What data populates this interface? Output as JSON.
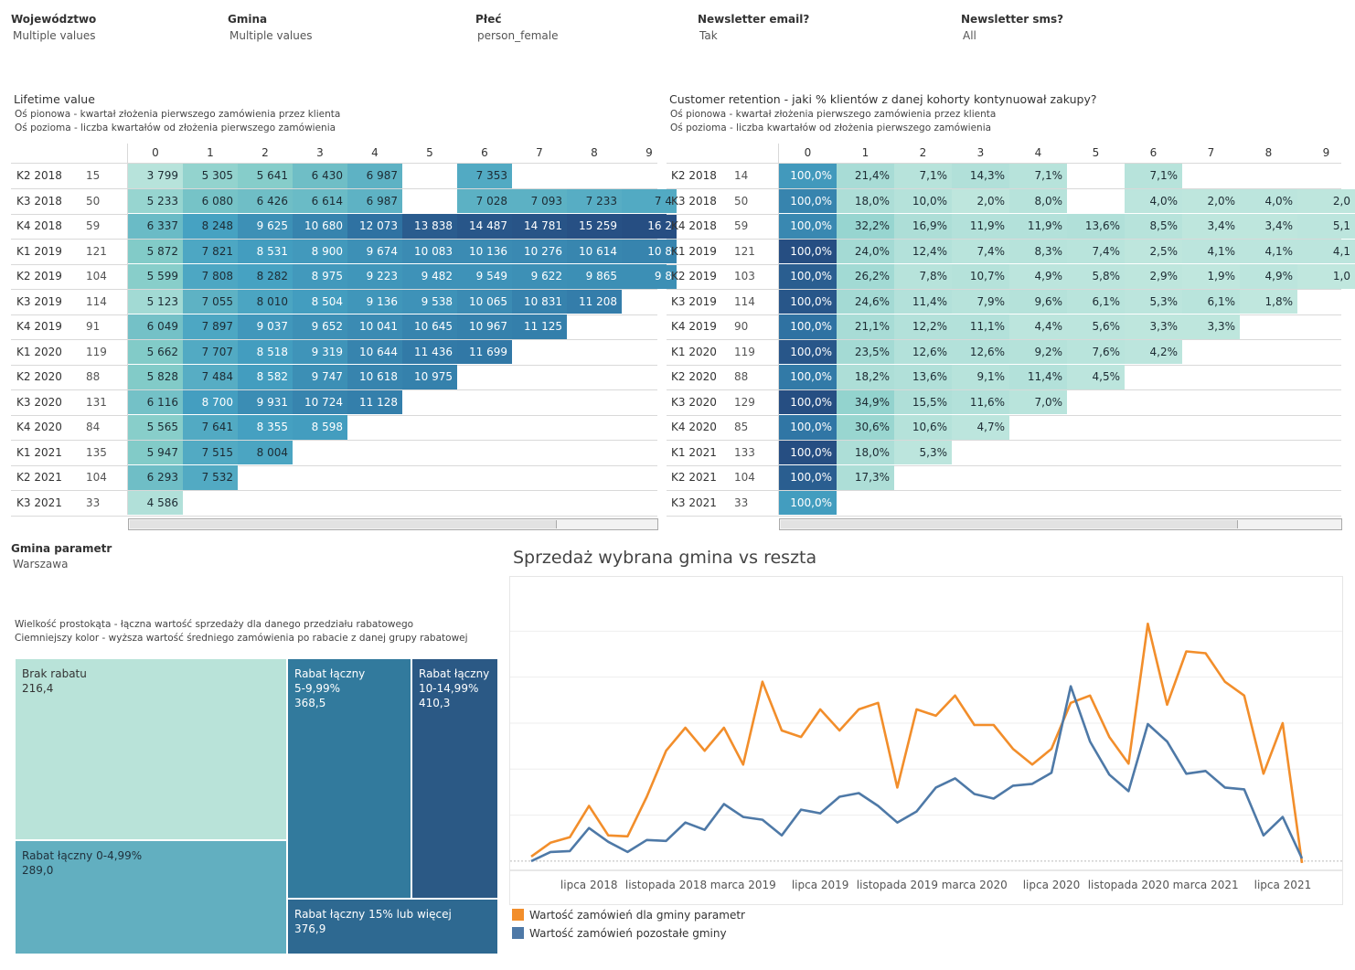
{
  "filters": [
    {
      "label": "Województwo",
      "value": "Multiple values"
    },
    {
      "label": "Gmina",
      "value": "Multiple values"
    },
    {
      "label": "Płeć",
      "value": "person_female"
    },
    {
      "label": "Newsletter email?",
      "value": "Tak"
    },
    {
      "label": "Newsletter sms?",
      "value": "All"
    }
  ],
  "ltv": {
    "title": "Lifetime value",
    "sub1": "Oś pionowa - kwartał złożenia pierwszego zamówienia przez klienta",
    "sub2": "Oś pozioma - liczba kwartałów od złożenia pierwszego zamówienia"
  },
  "ret": {
    "title": "Customer retention - jaki % klientów z danej kohorty kontynuował zakupy?",
    "sub1": "Oś pionowa - kwartał złożenia pierwszego zamówienia przez klienta",
    "sub2": "Oś pozioma - liczba kwartałów od złożenia pierwszego zamówienia"
  },
  "gmina_param": {
    "label": "Gmina parametr",
    "value": "Warszawa"
  },
  "treemap_desc": {
    "line1": "Wielkość prostokąta - łączna wartość sprzedaży dla danego przedziału rabatowego",
    "line2": "Ciemniejszy kolor - wyższa wartość średniego zamówienia po rabacie z danej grupy rabatowej"
  },
  "colors": {
    "orange": "#f28e2b",
    "blue": "#4e79a7"
  },
  "chart_data": [
    {
      "type": "heatmap",
      "name": "ltv",
      "columns": [
        "0",
        "1",
        "2",
        "3",
        "4",
        "5",
        "6",
        "7",
        "8",
        "9"
      ],
      "rows": [
        {
          "label": "K2 2018",
          "count": "15",
          "cells": [
            "3 799",
            "5 305",
            "5 641",
            "6 430",
            "6 987",
            "",
            "7 353",
            "",
            "",
            ""
          ],
          "levels": [
            0.05,
            0.22,
            0.28,
            0.38,
            0.45,
            null,
            0.5,
            null,
            null,
            null
          ]
        },
        {
          "label": "K3 2018",
          "count": "50",
          "cells": [
            "5 233",
            "6 080",
            "6 426",
            "6 614",
            "6 987",
            "",
            "7 028",
            "7 093",
            "7 233",
            "7 4"
          ],
          "levels": [
            0.2,
            0.35,
            0.38,
            0.4,
            0.45,
            null,
            0.46,
            0.46,
            0.48,
            0.5
          ]
        },
        {
          "label": "K4 2018",
          "count": "59",
          "cells": [
            "6 337",
            "8 248",
            "9 625",
            "10 680",
            "12 073",
            "13 838",
            "14 487",
            "14 781",
            "15 259",
            "16 2"
          ],
          "levels": [
            0.4,
            0.55,
            0.65,
            0.72,
            0.82,
            0.93,
            0.96,
            0.97,
            0.99,
            1.0
          ]
        },
        {
          "label": "K1 2019",
          "count": "121",
          "cells": [
            "5 872",
            "7 821",
            "8 531",
            "8 900",
            "9 674",
            "10 083",
            "10 136",
            "10 276",
            "10 614",
            "10 8"
          ],
          "levels": [
            0.3,
            0.52,
            0.58,
            0.6,
            0.65,
            0.68,
            0.68,
            0.69,
            0.71,
            0.72
          ]
        },
        {
          "label": "K2 2019",
          "count": "104",
          "cells": [
            "5 599",
            "7 808",
            "8 282",
            "8 975",
            "9 223",
            "9 482",
            "9 549",
            "9 622",
            "9 865",
            "9 8"
          ],
          "levels": [
            0.27,
            0.52,
            0.55,
            0.6,
            0.62,
            0.64,
            0.64,
            0.65,
            0.66,
            0.66
          ]
        },
        {
          "label": "K3 2019",
          "count": "114",
          "cells": [
            "5 123",
            "7 055",
            "8 010",
            "8 504",
            "9 136",
            "9 538",
            "10 065",
            "10 831",
            "11 208",
            ""
          ],
          "levels": [
            0.15,
            0.45,
            0.53,
            0.58,
            0.62,
            0.64,
            0.68,
            0.73,
            0.76,
            null
          ]
        },
        {
          "label": "K4 2019",
          "count": "91",
          "cells": [
            "6 049",
            "7 897",
            "9 037",
            "9 652",
            "10 041",
            "10 645",
            "10 967",
            "11 125",
            "",
            ""
          ],
          "levels": [
            0.36,
            0.52,
            0.61,
            0.65,
            0.68,
            0.72,
            0.74,
            0.75,
            null,
            null
          ]
        },
        {
          "label": "K1 2020",
          "count": "119",
          "cells": [
            "5 662",
            "7 707",
            "8 518",
            "9 319",
            "10 644",
            "11 436",
            "11 699",
            "",
            "",
            ""
          ],
          "levels": [
            0.3,
            0.5,
            0.58,
            0.63,
            0.72,
            0.78,
            0.79,
            null,
            null,
            null
          ]
        },
        {
          "label": "K2 2020",
          "count": "88",
          "cells": [
            "5 828",
            "7 484",
            "8 582",
            "9 747",
            "10 618",
            "10 975",
            "",
            "",
            "",
            ""
          ],
          "levels": [
            0.3,
            0.48,
            0.58,
            0.66,
            0.72,
            0.74,
            null,
            null,
            null,
            null
          ]
        },
        {
          "label": "K3 2020",
          "count": "131",
          "cells": [
            "6 116",
            "8 700",
            "9 931",
            "10 724",
            "11 128",
            "",
            "",
            "",
            "",
            ""
          ],
          "levels": [
            0.36,
            0.57,
            0.67,
            0.72,
            0.75,
            null,
            null,
            null,
            null,
            null
          ]
        },
        {
          "label": "K4 2020",
          "count": "84",
          "cells": [
            "5 565",
            "7 641",
            "8 355",
            "8 598",
            "",
            "",
            "",
            "",
            "",
            ""
          ],
          "levels": [
            0.27,
            0.5,
            0.56,
            0.58,
            null,
            null,
            null,
            null,
            null,
            null
          ]
        },
        {
          "label": "K1 2021",
          "count": "135",
          "cells": [
            "5 947",
            "7 515",
            "8 004",
            "",
            "",
            "",
            "",
            "",
            "",
            ""
          ],
          "levels": [
            0.3,
            0.5,
            0.53,
            null,
            null,
            null,
            null,
            null,
            null,
            null
          ]
        },
        {
          "label": "K2 2021",
          "count": "104",
          "cells": [
            "6 293",
            "7 532",
            "",
            "",
            "",
            "",
            "",
            "",
            "",
            ""
          ],
          "levels": [
            0.38,
            0.5,
            null,
            null,
            null,
            null,
            null,
            null,
            null,
            null
          ]
        },
        {
          "label": "K3 2021",
          "count": "33",
          "cells": [
            "4 586",
            "",
            "",
            "",
            "",
            "",
            "",
            "",
            "",
            ""
          ],
          "levels": [
            0.08,
            null,
            null,
            null,
            null,
            null,
            null,
            null,
            null,
            null
          ]
        }
      ]
    },
    {
      "type": "heatmap",
      "name": "retention",
      "columns": [
        "0",
        "1",
        "2",
        "3",
        "4",
        "5",
        "6",
        "7",
        "8",
        "9"
      ],
      "rows": [
        {
          "label": "K2 2018",
          "count": "14",
          "cells": [
            "100,0%",
            "21,4%",
            "7,1%",
            "14,3%",
            "7,1%",
            "",
            "7,1%",
            "",
            "",
            ""
          ],
          "levels": [
            0.6,
            0.12,
            0.05,
            0.08,
            0.05,
            null,
            0.05,
            null,
            null,
            null
          ]
        },
        {
          "label": "K3 2018",
          "count": "50",
          "cells": [
            "100,0%",
            "18,0%",
            "10,0%",
            "2,0%",
            "8,0%",
            "",
            "4,0%",
            "2,0%",
            "4,0%",
            "2,0"
          ],
          "levels": [
            0.72,
            0.1,
            0.06,
            0.02,
            0.05,
            null,
            0.03,
            0.02,
            0.03,
            0.02
          ]
        },
        {
          "label": "K4 2018",
          "count": "59",
          "cells": [
            "100,0%",
            "32,2%",
            "16,9%",
            "11,9%",
            "11,9%",
            "13,6%",
            "8,5%",
            "3,4%",
            "3,4%",
            "5,1"
          ],
          "levels": [
            0.7,
            0.2,
            0.1,
            0.07,
            0.07,
            0.08,
            0.05,
            0.02,
            0.02,
            0.03
          ]
        },
        {
          "label": "K1 2019",
          "count": "121",
          "cells": [
            "100,0%",
            "24,0%",
            "12,4%",
            "7,4%",
            "8,3%",
            "7,4%",
            "2,5%",
            "4,1%",
            "4,1%",
            "4,1"
          ],
          "levels": [
            1.0,
            0.14,
            0.07,
            0.04,
            0.05,
            0.04,
            0.02,
            0.03,
            0.03,
            0.03
          ]
        },
        {
          "label": "K2 2019",
          "count": "103",
          "cells": [
            "100,0%",
            "26,2%",
            "7,8%",
            "10,7%",
            "4,9%",
            "5,8%",
            "2,9%",
            "1,9%",
            "4,9%",
            "1,0"
          ],
          "levels": [
            0.92,
            0.15,
            0.05,
            0.06,
            0.03,
            0.03,
            0.02,
            0.01,
            0.03,
            0.01
          ]
        },
        {
          "label": "K3 2019",
          "count": "114",
          "cells": [
            "100,0%",
            "24,6%",
            "11,4%",
            "7,9%",
            "9,6%",
            "6,1%",
            "5,3%",
            "6,1%",
            "1,8%",
            ""
          ],
          "levels": [
            0.96,
            0.14,
            0.07,
            0.05,
            0.06,
            0.04,
            0.03,
            0.04,
            0.01,
            null
          ]
        },
        {
          "label": "K4 2019",
          "count": "90",
          "cells": [
            "100,0%",
            "21,1%",
            "12,2%",
            "11,1%",
            "4,4%",
            "5,6%",
            "3,3%",
            "3,3%",
            "",
            ""
          ],
          "levels": [
            0.82,
            0.12,
            0.07,
            0.07,
            0.03,
            0.03,
            0.02,
            0.02,
            null,
            null
          ]
        },
        {
          "label": "K1 2020",
          "count": "119",
          "cells": [
            "100,0%",
            "23,5%",
            "12,6%",
            "12,6%",
            "9,2%",
            "7,6%",
            "4,2%",
            "",
            "",
            ""
          ],
          "levels": [
            0.96,
            0.14,
            0.07,
            0.07,
            0.06,
            0.04,
            0.03,
            null,
            null,
            null
          ]
        },
        {
          "label": "K2 2020",
          "count": "88",
          "cells": [
            "100,0%",
            "18,2%",
            "13,6%",
            "9,1%",
            "11,4%",
            "4,5%",
            "",
            "",
            "",
            ""
          ],
          "levels": [
            0.78,
            0.1,
            0.08,
            0.05,
            0.07,
            0.03,
            null,
            null,
            null,
            null
          ]
        },
        {
          "label": "K3 2020",
          "count": "129",
          "cells": [
            "100,0%",
            "34,9%",
            "15,5%",
            "11,6%",
            "7,0%",
            "",
            "",
            "",
            "",
            ""
          ],
          "levels": [
            1.0,
            0.22,
            0.09,
            0.07,
            0.04,
            null,
            null,
            null,
            null,
            null
          ]
        },
        {
          "label": "K4 2020",
          "count": "85",
          "cells": [
            "100,0%",
            "30,6%",
            "10,6%",
            "4,7%",
            "",
            "",
            "",
            "",
            "",
            ""
          ],
          "levels": [
            0.8,
            0.19,
            0.06,
            0.03,
            null,
            null,
            null,
            null,
            null,
            null
          ]
        },
        {
          "label": "K1 2021",
          "count": "133",
          "cells": [
            "100,0%",
            "18,0%",
            "5,3%",
            "",
            "",
            "",
            "",
            "",
            "",
            ""
          ],
          "levels": [
            1.0,
            0.1,
            0.03,
            null,
            null,
            null,
            null,
            null,
            null,
            null
          ]
        },
        {
          "label": "K2 2021",
          "count": "104",
          "cells": [
            "100,0%",
            "17,3%",
            "",
            "",
            "",
            "",
            "",
            "",
            "",
            ""
          ],
          "levels": [
            0.92,
            0.1,
            null,
            null,
            null,
            null,
            null,
            null,
            null,
            null
          ]
        },
        {
          "label": "K3 2021",
          "count": "33",
          "cells": [
            "100,0%",
            "",
            "",
            "",
            "",
            "",
            "",
            "",
            "",
            ""
          ],
          "levels": [
            0.58,
            null,
            null,
            null,
            null,
            null,
            null,
            null,
            null,
            null
          ]
        }
      ]
    },
    {
      "type": "treemap",
      "name": "rabat",
      "items": [
        {
          "label": "Brak rabatu",
          "value": "216,4"
        },
        {
          "label": "Rabat łączny 0-4,99%",
          "value": "289,0"
        },
        {
          "label": "Rabat łączny 5-9,99%",
          "value": "368,5"
        },
        {
          "label": "Rabat łączny 10-14,99%",
          "value": "410,3"
        },
        {
          "label": "Rabat łączny 15% lub więcej",
          "value": "376,9"
        }
      ]
    },
    {
      "type": "line",
      "name": "sprzedaz",
      "title": "Sprzedaż wybrana gmina vs reszta",
      "x_ticks": [
        {
          "label": "lipca 2018",
          "i": 3
        },
        {
          "label": "listopada 2018",
          "i": 7
        },
        {
          "label": "marca 2019",
          "i": 11
        },
        {
          "label": "lipca 2019",
          "i": 15
        },
        {
          "label": "listopada 2019",
          "i": 19
        },
        {
          "label": "marca 2020",
          "i": 23
        },
        {
          "label": "lipca 2020",
          "i": 27
        },
        {
          "label": "listopada 2020",
          "i": 31
        },
        {
          "label": "marca 2021",
          "i": 35
        },
        {
          "label": "lipca 2021",
          "i": 39
        }
      ],
      "ylim": [
        -10,
        300
      ],
      "series": [
        {
          "name": "Wartość zamówień dla gminy parametr",
          "color": "#f28e2b",
          "values": [
            5,
            20,
            26,
            60,
            28,
            27,
            70,
            120,
            145,
            120,
            145,
            105,
            195,
            142,
            135,
            165,
            142,
            165,
            172,
            80,
            165,
            158,
            180,
            148,
            148,
            122,
            105,
            122,
            172,
            180,
            135,
            106,
            258,
            170,
            228,
            226,
            195,
            180,
            95,
            150,
            -2
          ]
        },
        {
          "name": "Wartość zamówień pozostałe gminy",
          "color": "#4e79a7",
          "values": [
            0,
            10,
            11,
            36,
            21,
            10,
            23,
            22,
            42,
            34,
            62,
            48,
            45,
            28,
            56,
            52,
            70,
            74,
            60,
            42,
            54,
            80,
            90,
            73,
            68,
            82,
            84,
            96,
            190,
            130,
            94,
            76,
            149,
            130,
            95,
            98,
            80,
            78,
            28,
            48,
            3
          ]
        }
      ]
    }
  ]
}
